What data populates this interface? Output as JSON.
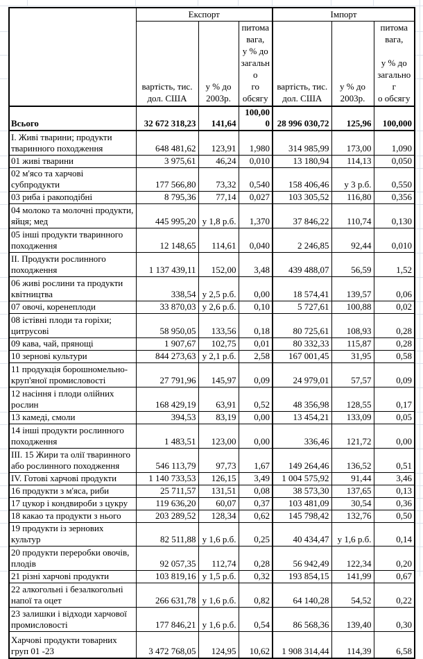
{
  "colors": {
    "table_border": "#000000",
    "sheet_gridline": "#dbe1ea",
    "error_indicator_green": "#217346"
  },
  "table": {
    "header": {
      "export_label": "Експорт",
      "import_label": "Імпорт",
      "value_col": "вартість, тис.\nдол. США",
      "pct_col": "у % до\n2003р.",
      "export_share_col": "питома\nвага,\nу % до\nзагально\nго\nобсягу",
      "import_share_col": "питома\nвага,\n\nу % до\nзагальног\nо обсягу"
    },
    "rows": [
      {
        "label": "Всього",
        "ev": "32 672 318,23",
        "ep": "141,64",
        "es": "100,000",
        "iv": "28 996 030,72",
        "ip": "125,96",
        "is": "100,000",
        "h": 1,
        "bold": true
      },
      {
        "label": "I. Живі тварини; продукти тваринного походження",
        "ev": "648 481,62",
        "ep": "123,91",
        "es": "1,980",
        "iv": "314 985,99",
        "ip": "173,00",
        "is": "1,090",
        "h": 2
      },
      {
        "label": "01 живі тварини",
        "ev": "3 975,61",
        "ep": "46,24",
        "es": "0,010",
        "iv": "13 180,94",
        "ip": "114,13",
        "is": "0,050",
        "h": 1
      },
      {
        "label": "02 м'ясо та харчові субпродукти",
        "ev": "177 566,80",
        "ep": "73,32",
        "es": "0,540",
        "iv": "158 406,46",
        "ip": "у 3 р.б.",
        "is": "0,550",
        "h": 1
      },
      {
        "label": "03 риба і ракоподібні",
        "ev": "8 795,36",
        "ep": "77,14",
        "es": "0,027",
        "iv": "103 305,52",
        "ip": "116,80",
        "is": "0,356",
        "h": 1
      },
      {
        "label": "04 молоко та молочні продукти, яйця; мед",
        "ev": "445 995,20",
        "ep": "у 1,8 р.б.",
        "es": "1,370",
        "iv": "37 846,22",
        "ip": "110,74",
        "is": "0,130",
        "h": 2
      },
      {
        "label": "05 інші продукти тваринного походження",
        "ev": "12 148,65",
        "ep": "114,61",
        "es": "0,040",
        "iv": "2 246,85",
        "ip": "92,44",
        "is": "0,010",
        "h": 2
      },
      {
        "label": "II. Продукти рослинного походження",
        "ev": "1 137 439,11",
        "ep": "152,00",
        "es": "3,48",
        "iv": "439 488,07",
        "ip": "56,59",
        "is": "1,52",
        "h": 2
      },
      {
        "label": "06 живі рослини та продукти квітництва",
        "ev": "338,54",
        "ep": "у 2,5 р.б.",
        "es": "0,00",
        "iv": "18 574,41",
        "ip": "139,57",
        "is": "0,06",
        "h": 2
      },
      {
        "label": "07 овочі, коренеплоди",
        "ev": "33 870,03",
        "ep": "у 2,6 р.б.",
        "es": "0,10",
        "iv": "5 727,61",
        "ip": "100,88",
        "is": "0,02",
        "h": 1
      },
      {
        "label": "08 істівні плоди та горіхи; цитрусові",
        "ev": "58 950,05",
        "ep": "133,56",
        "es": "0,18",
        "iv": "80 725,61",
        "ip": "108,93",
        "is": "0,28",
        "h": 2
      },
      {
        "label": "09 кава, чай, прянощі",
        "ev": "1 907,67",
        "ep": "102,75",
        "es": "0,01",
        "iv": "80 332,33",
        "ip": "115,87",
        "is": "0,28",
        "h": 1
      },
      {
        "label": "10 зернові культури",
        "ev": "844 273,63",
        "ep": "у 2,1 р.б.",
        "es": "2,58",
        "iv": "167 001,45",
        "ip": "31,95",
        "is": "0,58",
        "h": 1
      },
      {
        "label": "11 продукція борошномельно-круп'яної промисловості",
        "ev": "27 791,96",
        "ep": "145,97",
        "es": "0,09",
        "iv": "24 979,01",
        "ip": "57,57",
        "is": "0,09",
        "h": 2
      },
      {
        "label": "12 насіння і плоди олійних рослин",
        "ev": "168 429,19",
        "ep": "63,91",
        "es": "0,52",
        "iv": "48 356,98",
        "ip": "128,55",
        "is": "0,17",
        "h": 2
      },
      {
        "label": "13 камеді, смоли",
        "ev": "394,53",
        "ep": "83,19",
        "es": "0,00",
        "iv": "13 454,21",
        "ip": "133,09",
        "is": "0,05",
        "h": 1
      },
      {
        "label": "14 інші продукти рослинного походження",
        "ev": "1 483,51",
        "ep": "123,00",
        "es": "0,00",
        "iv": "336,46",
        "ip": "121,72",
        "is": "0,00",
        "h": 2
      },
      {
        "label": "III. 15 Жири та олії тваринного або рослинного походження",
        "ev": "546 113,79",
        "ep": "97,73",
        "es": "1,67",
        "iv": "149 264,46",
        "ip": "136,52",
        "is": "0,51",
        "h": 2
      },
      {
        "label": "IV. Готові харчові продукти",
        "ev": "1 140 733,53",
        "ep": "126,15",
        "es": "3,49",
        "iv": "1 004 575,92",
        "ip": "91,44",
        "is": "3,46",
        "h": 1
      },
      {
        "label": "16 продукти з м'яса, риби",
        "ev": "25 711,57",
        "ep": "131,51",
        "es": "0,08",
        "iv": "38 573,30",
        "ip": "137,65",
        "is": "0,13",
        "h": 1
      },
      {
        "label": "17 цукор і кондвироби з цукру",
        "ev": "119 636,20",
        "ep": "60,07",
        "es": "0,37",
        "iv": "103 481,09",
        "ip": "30,54",
        "is": "0,36",
        "h": 1
      },
      {
        "label": "18 какао та продукти з нього",
        "ev": "203 289,52",
        "ep": "128,34",
        "es": "0,62",
        "iv": "145 798,42",
        "ip": "132,76",
        "is": "0,50",
        "h": 1
      },
      {
        "label": "19 продукти із зернових культур",
        "ev": "82 511,88",
        "ep": "у 1,6 р.б.",
        "es": "0,25",
        "iv": "40 434,47",
        "ip": "у 1,6 р.б.",
        "is": "0,14",
        "h": 1
      },
      {
        "label": "20 продукти переробки овочів, плодів",
        "ev": "92 057,35",
        "ep": "112,74",
        "es": "0,28",
        "iv": "56 942,49",
        "ip": "122,34",
        "is": "0,20",
        "h": 2
      },
      {
        "label": "21 різні харчові продукти",
        "ev": "103 819,16",
        "ep": "у 1,5 р.б.",
        "es": "0,32",
        "iv": "193 854,15",
        "ip": "141,99",
        "is": "0,67",
        "h": 1
      },
      {
        "label": "22 алкогольні і безалкогольні напої та оцет",
        "ev": "266 631,78",
        "ep": "у 1,6 р.б.",
        "es": "0,82",
        "iv": "64 140,28",
        "ip": "54,52",
        "is": "0,22",
        "h": 2
      },
      {
        "label": "23 залишки і відходи харчової промисловості",
        "ev": "177 846,21",
        "ep": "у 1,6 р.б.",
        "es": "0,54",
        "iv": "86 568,36",
        "ip": "139,40",
        "is": "0,30",
        "h": 2
      },
      {
        "label": "Харчові продукти товарних груп 01 -23",
        "ev": "3 472 768,05",
        "ep": "124,95",
        "es": "10,62",
        "iv": "1 908 314,44",
        "ip": "114,39",
        "is": "6,58",
        "h": 3,
        "mark_ep": true,
        "mark_ip": true
      }
    ]
  }
}
